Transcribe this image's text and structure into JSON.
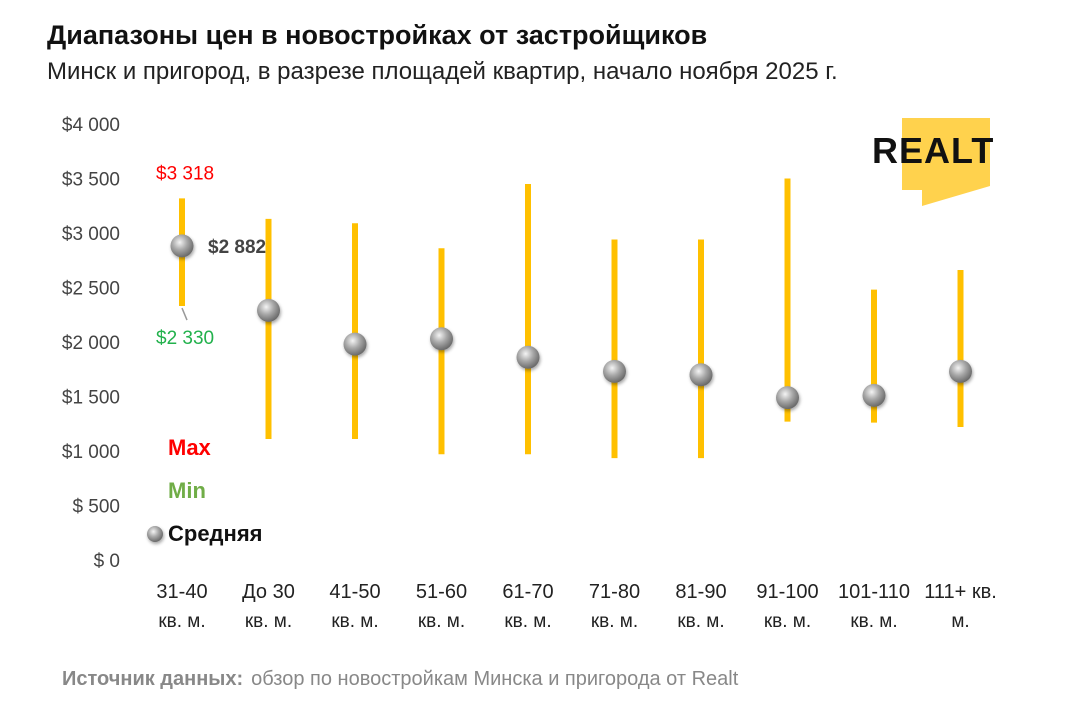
{
  "title": "Диапазоны цен в новостройках от застройщиков",
  "subtitle": "Минск и пригород, в разрезе площадей квартир, начало ноября 2025 г.",
  "source_label": "Источник данных:",
  "source_text": "обзор по новостройкам Минска и пригорода от Realt",
  "logo_text": "REALT",
  "colors": {
    "range": "#FFC000",
    "max": "#FF0000",
    "min": "#70AD47",
    "avg": "#999999",
    "min_label": "#22B14C"
  },
  "chart_data": {
    "type": "range-dot",
    "title": "Диапазоны цен в новостройках от застройщиков",
    "ylim": [
      0,
      4000
    ],
    "yticks": [
      0,
      500,
      1000,
      1500,
      2000,
      2500,
      3000,
      3500,
      4000
    ],
    "ytick_labels": [
      "$ 0",
      "$ 500",
      "$1 000",
      "$1 500",
      "$2 000",
      "$2 500",
      "$3 000",
      "$3 500",
      "$4 000"
    ],
    "categories": [
      [
        "31-40",
        "кв. м."
      ],
      [
        "До 30",
        "кв. м."
      ],
      [
        "41-50",
        "кв. м."
      ],
      [
        "51-60",
        "кв. м."
      ],
      [
        "61-70",
        "кв. м."
      ],
      [
        "71-80",
        "кв. м."
      ],
      [
        "81-90",
        "кв. м."
      ],
      [
        "91-100",
        "кв. м."
      ],
      [
        "101-110",
        "кв. м."
      ],
      [
        "111+ кв.",
        "м."
      ]
    ],
    "series": [
      {
        "name": "Max",
        "values": [
          3318,
          3130,
          3090,
          2860,
          3450,
          2940,
          2940,
          3500,
          2480,
          2660
        ]
      },
      {
        "name": "Min",
        "values": [
          2330,
          1110,
          1110,
          970,
          970,
          935,
          935,
          1270,
          1260,
          1220
        ]
      },
      {
        "name": "Средняя",
        "values": [
          2882,
          2290,
          1980,
          2030,
          1860,
          1730,
          1700,
          1490,
          1510,
          1730
        ]
      }
    ],
    "annotations": {
      "max": "$3 318",
      "min": "$2 330",
      "avg": "$2 882"
    },
    "legend": [
      "Max",
      "Min",
      "Средняя"
    ],
    "legend_position": "bottom-left"
  }
}
